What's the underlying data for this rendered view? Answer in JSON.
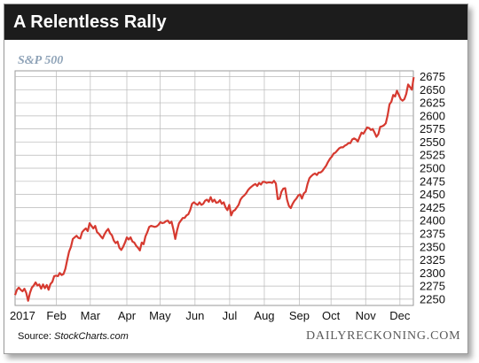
{
  "header": {
    "title": "A Relentless Rally"
  },
  "source": {
    "label": "Source:",
    "name": "StockCharts.com"
  },
  "brand": "DAILYRECKONING.COM",
  "colors": {
    "header_bg": "#1c1c1c",
    "line": "#d63a30",
    "grid": "#b8b8b8",
    "subtitle": "#8fa3b8"
  },
  "chart_data": {
    "type": "line",
    "title": "S&P 500",
    "xlabel": "",
    "ylabel": "",
    "ylim": [
      2238,
      2686
    ],
    "yticks": [
      2250,
      2275,
      2300,
      2325,
      2350,
      2375,
      2400,
      2425,
      2450,
      2475,
      2500,
      2525,
      2550,
      2575,
      2600,
      2625,
      2650,
      2675
    ],
    "xticks": [
      {
        "label": "2017",
        "t": 0.02
      },
      {
        "label": "Feb",
        "t": 0.111
      },
      {
        "label": "Mar",
        "t": 0.202
      },
      {
        "label": "Apr",
        "t": 0.3
      },
      {
        "label": "May",
        "t": 0.389
      },
      {
        "label": "Jun",
        "t": 0.483
      },
      {
        "label": "Jul",
        "t": 0.576
      },
      {
        "label": "Aug",
        "t": 0.669
      },
      {
        "label": "Sep",
        "t": 0.763
      },
      {
        "label": "Oct",
        "t": 0.848
      },
      {
        "label": "Nov",
        "t": 0.941
      },
      {
        "label": "Dec",
        "t": 1.033
      }
    ],
    "grid": true,
    "series": [
      {
        "points": [
          [
            0.0,
            2258
          ],
          [
            0.005,
            2268
          ],
          [
            0.01,
            2272
          ],
          [
            0.015,
            2268
          ],
          [
            0.02,
            2265
          ],
          [
            0.025,
            2270
          ],
          [
            0.03,
            2262
          ],
          [
            0.035,
            2247
          ],
          [
            0.04,
            2262
          ],
          [
            0.045,
            2272
          ],
          [
            0.05,
            2276
          ],
          [
            0.055,
            2282
          ],
          [
            0.06,
            2276
          ],
          [
            0.065,
            2278
          ],
          [
            0.07,
            2270
          ],
          [
            0.075,
            2278
          ],
          [
            0.08,
            2271
          ],
          [
            0.085,
            2277
          ],
          [
            0.09,
            2268
          ],
          [
            0.095,
            2279
          ],
          [
            0.1,
            2283
          ],
          [
            0.105,
            2294
          ],
          [
            0.11,
            2295
          ],
          [
            0.115,
            2294
          ],
          [
            0.12,
            2300
          ],
          [
            0.125,
            2296
          ],
          [
            0.13,
            2298
          ],
          [
            0.135,
            2308
          ],
          [
            0.14,
            2325
          ],
          [
            0.145,
            2341
          ],
          [
            0.15,
            2350
          ],
          [
            0.155,
            2365
          ],
          [
            0.16,
            2368
          ],
          [
            0.165,
            2371
          ],
          [
            0.17,
            2367
          ],
          [
            0.175,
            2366
          ],
          [
            0.18,
            2378
          ],
          [
            0.185,
            2382
          ],
          [
            0.19,
            2385
          ],
          [
            0.195,
            2380
          ],
          [
            0.2,
            2395
          ],
          [
            0.205,
            2390
          ],
          [
            0.21,
            2385
          ],
          [
            0.215,
            2390
          ],
          [
            0.22,
            2378
          ],
          [
            0.225,
            2375
          ],
          [
            0.23,
            2370
          ],
          [
            0.235,
            2366
          ],
          [
            0.24,
            2374
          ],
          [
            0.245,
            2380
          ],
          [
            0.25,
            2384
          ],
          [
            0.255,
            2376
          ],
          [
            0.26,
            2372
          ],
          [
            0.265,
            2362
          ],
          [
            0.27,
            2357
          ],
          [
            0.275,
            2360
          ],
          [
            0.28,
            2348
          ],
          [
            0.285,
            2344
          ],
          [
            0.29,
            2350
          ],
          [
            0.295,
            2358
          ],
          [
            0.3,
            2368
          ],
          [
            0.305,
            2364
          ],
          [
            0.31,
            2368
          ],
          [
            0.315,
            2360
          ],
          [
            0.32,
            2358
          ],
          [
            0.325,
            2352
          ],
          [
            0.33,
            2348
          ],
          [
            0.335,
            2343
          ],
          [
            0.34,
            2358
          ],
          [
            0.345,
            2355
          ],
          [
            0.35,
            2370
          ],
          [
            0.355,
            2378
          ],
          [
            0.36,
            2388
          ],
          [
            0.365,
            2390
          ],
          [
            0.37,
            2389
          ],
          [
            0.375,
            2388
          ],
          [
            0.38,
            2389
          ],
          [
            0.385,
            2392
          ],
          [
            0.39,
            2397
          ],
          [
            0.395,
            2395
          ],
          [
            0.4,
            2396
          ],
          [
            0.405,
            2399
          ],
          [
            0.41,
            2400
          ],
          [
            0.415,
            2395
          ],
          [
            0.42,
            2398
          ],
          [
            0.425,
            2383
          ],
          [
            0.43,
            2365
          ],
          [
            0.435,
            2382
          ],
          [
            0.44,
            2395
          ],
          [
            0.445,
            2400
          ],
          [
            0.45,
            2405
          ],
          [
            0.455,
            2405
          ],
          [
            0.46,
            2410
          ],
          [
            0.465,
            2412
          ],
          [
            0.47,
            2420
          ],
          [
            0.475,
            2432
          ],
          [
            0.48,
            2435
          ],
          [
            0.485,
            2432
          ],
          [
            0.49,
            2430
          ],
          [
            0.495,
            2435
          ],
          [
            0.5,
            2430
          ],
          [
            0.505,
            2432
          ],
          [
            0.51,
            2438
          ],
          [
            0.515,
            2440
          ],
          [
            0.52,
            2436
          ],
          [
            0.525,
            2445
          ],
          [
            0.53,
            2436
          ],
          [
            0.535,
            2440
          ],
          [
            0.54,
            2434
          ],
          [
            0.545,
            2435
          ],
          [
            0.55,
            2439
          ],
          [
            0.555,
            2432
          ],
          [
            0.56,
            2435
          ],
          [
            0.565,
            2425
          ],
          [
            0.57,
            2420
          ],
          [
            0.575,
            2430
          ],
          [
            0.58,
            2410
          ],
          [
            0.585,
            2418
          ],
          [
            0.59,
            2420
          ],
          [
            0.595,
            2425
          ],
          [
            0.6,
            2430
          ],
          [
            0.605,
            2440
          ],
          [
            0.61,
            2445
          ],
          [
            0.615,
            2448
          ],
          [
            0.62,
            2452
          ],
          [
            0.625,
            2458
          ],
          [
            0.63,
            2462
          ],
          [
            0.635,
            2465
          ],
          [
            0.64,
            2468
          ],
          [
            0.645,
            2470
          ],
          [
            0.65,
            2466
          ],
          [
            0.655,
            2472
          ],
          [
            0.66,
            2469
          ],
          [
            0.665,
            2474
          ],
          [
            0.67,
            2474
          ],
          [
            0.675,
            2472
          ],
          [
            0.68,
            2473
          ],
          [
            0.685,
            2473
          ],
          [
            0.69,
            2472
          ],
          [
            0.695,
            2476
          ],
          [
            0.7,
            2471
          ],
          [
            0.705,
            2441
          ],
          [
            0.71,
            2442
          ],
          [
            0.715,
            2455
          ],
          [
            0.72,
            2461
          ],
          [
            0.725,
            2462
          ],
          [
            0.73,
            2440
          ],
          [
            0.735,
            2428
          ],
          [
            0.74,
            2424
          ],
          [
            0.745,
            2432
          ],
          [
            0.75,
            2438
          ],
          [
            0.755,
            2442
          ],
          [
            0.76,
            2448
          ],
          [
            0.765,
            2450
          ],
          [
            0.77,
            2442
          ],
          [
            0.775,
            2452
          ],
          [
            0.78,
            2455
          ],
          [
            0.785,
            2470
          ],
          [
            0.79,
            2481
          ],
          [
            0.795,
            2485
          ],
          [
            0.8,
            2488
          ],
          [
            0.805,
            2490
          ],
          [
            0.81,
            2487
          ],
          [
            0.815,
            2492
          ],
          [
            0.82,
            2492
          ],
          [
            0.825,
            2495
          ],
          [
            0.83,
            2500
          ],
          [
            0.835,
            2505
          ],
          [
            0.84,
            2512
          ],
          [
            0.845,
            2518
          ],
          [
            0.85,
            2522
          ],
          [
            0.855,
            2528
          ],
          [
            0.86,
            2530
          ],
          [
            0.865,
            2534
          ],
          [
            0.87,
            2538
          ],
          [
            0.875,
            2540
          ],
          [
            0.88,
            2540
          ],
          [
            0.885,
            2543
          ],
          [
            0.89,
            2545
          ],
          [
            0.895,
            2548
          ],
          [
            0.9,
            2548
          ],
          [
            0.905,
            2555
          ],
          [
            0.91,
            2557
          ],
          [
            0.915,
            2555
          ],
          [
            0.92,
            2551
          ],
          [
            0.925,
            2560
          ],
          [
            0.93,
            2568
          ],
          [
            0.935,
            2566
          ],
          [
            0.94,
            2572
          ],
          [
            0.945,
            2578
          ],
          [
            0.95,
            2577
          ],
          [
            0.955,
            2573
          ],
          [
            0.96,
            2575
          ],
          [
            0.965,
            2568
          ],
          [
            0.97,
            2560
          ],
          [
            0.975,
            2565
          ],
          [
            0.98,
            2579
          ],
          [
            0.985,
            2580
          ],
          [
            0.99,
            2582
          ],
          [
            0.995,
            2586
          ],
          [
            1.0,
            2601
          ],
          [
            1.005,
            2622
          ],
          [
            1.01,
            2627
          ],
          [
            1.015,
            2640
          ],
          [
            1.02,
            2637
          ],
          [
            1.025,
            2648
          ],
          [
            1.03,
            2640
          ],
          [
            1.035,
            2632
          ],
          [
            1.04,
            2629
          ],
          [
            1.045,
            2632
          ],
          [
            1.05,
            2642
          ],
          [
            1.055,
            2660
          ],
          [
            1.06,
            2655
          ],
          [
            1.065,
            2650
          ],
          [
            1.07,
            2674
          ]
        ]
      }
    ]
  }
}
